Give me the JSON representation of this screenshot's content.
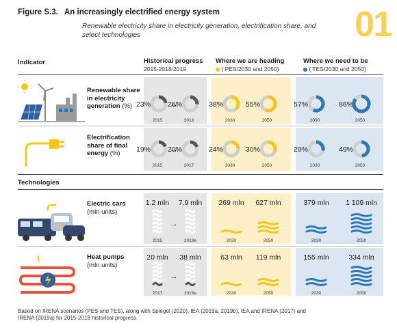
{
  "figure": {
    "label": "Figure S.3.",
    "title": "An increasingly electrified energy system",
    "subtitle": "Renewable electricity share in electricity generation, electrification share, and select technologies",
    "number": "01"
  },
  "columns": {
    "indicator": "Indicator",
    "historical": {
      "title": "Historical progress",
      "sub": "2015-2018/2019"
    },
    "heading": {
      "title": "Where we are heading",
      "sub": "( PES/2030 and 2050)"
    },
    "need": {
      "title": "Where we need to be",
      "sub": "( TES/2030 and 2050)"
    }
  },
  "sections": {
    "technologies": "Technologies"
  },
  "footnote": "Based on IRENA scenarios (PES and TES), along with Spiegel (2020), IEA (2019a, 2019b), IEA and IRENA (2017) and IRENA (2019a) for 2015-2018 historical progress.",
  "colors": {
    "historical": "#555555",
    "heading": "#f5c518",
    "need": "#2e78b7",
    "track": "#cfcfcf"
  },
  "chart_data": [
    {
      "type": "pie",
      "indicator": "Renewable share in electricity generation",
      "unit": "(%)",
      "historical": [
        {
          "year": "2015",
          "value": 23
        },
        {
          "year": "2018",
          "value": 26
        }
      ],
      "heading": [
        {
          "year": "2030",
          "value": 38
        },
        {
          "year": "2050",
          "value": 55
        }
      ],
      "need": [
        {
          "year": "2030",
          "value": 57
        },
        {
          "year": "2050",
          "value": 86
        }
      ]
    },
    {
      "type": "pie",
      "indicator": "Electrification share of final energy",
      "unit": "(%)",
      "historical": [
        {
          "year": "2015",
          "value": 19
        },
        {
          "year": "2017",
          "value": 20
        }
      ],
      "heading": [
        {
          "year": "2030",
          "value": 24
        },
        {
          "year": "2050",
          "value": 30
        }
      ],
      "need": [
        {
          "year": "2030",
          "value": 29
        },
        {
          "year": "2050",
          "value": 49
        }
      ]
    },
    {
      "type": "bar",
      "indicator": "Electric cars",
      "unit": "(mln units)",
      "value_unit": "mln",
      "historical": [
        {
          "year": "2015",
          "value": 1.2,
          "label": "1.2"
        },
        {
          "year": "2019e",
          "value": 7.9,
          "label": "7.9"
        }
      ],
      "heading": [
        {
          "year": "2030",
          "value": 269,
          "label": "269"
        },
        {
          "year": "2050",
          "value": 627,
          "label": "627"
        }
      ],
      "need": [
        {
          "year": "2030",
          "value": 379,
          "label": "379"
        },
        {
          "year": "2050",
          "value": 1109,
          "label": "1 109"
        }
      ]
    },
    {
      "type": "bar",
      "indicator": "Heat pumps",
      "unit": "(mln units)",
      "value_unit": "mln",
      "historical": [
        {
          "year": "2017",
          "value": 20,
          "label": "20"
        },
        {
          "year": "2019e",
          "value": 38,
          "label": "38"
        }
      ],
      "heading": [
        {
          "year": "2030",
          "value": 63,
          "label": "63"
        },
        {
          "year": "2050",
          "value": 119,
          "label": "119"
        }
      ],
      "need": [
        {
          "year": "2030",
          "value": 155,
          "label": "155"
        },
        {
          "year": "2050",
          "value": 334,
          "label": "334"
        }
      ]
    }
  ]
}
